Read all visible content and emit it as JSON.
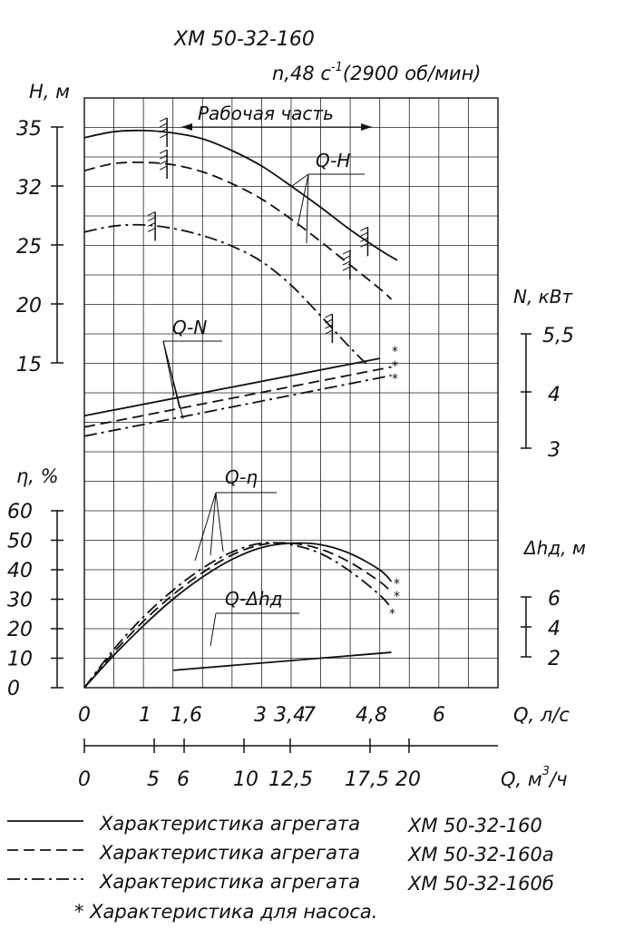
{
  "title": "ХМ 50-32-160",
  "speed_label": "n,48 с",
  "speed_exp": "-1",
  "speed_rpm": "(2900 об/мин)",
  "chart_data": {
    "type": "line",
    "title": "ХМ 50-32-160",
    "work_zone_label": "Рабочая часть",
    "curve_labels": {
      "qh": "Q-H",
      "qn": "Q-N",
      "qeta": "Q-η",
      "qdh": "Q-Δhд"
    },
    "axes": {
      "H": {
        "label": "Н, м",
        "ticks": [
          "35",
          "32",
          "25",
          "20",
          "15"
        ]
      },
      "N": {
        "label": "N, кВт",
        "ticks": [
          "5,5",
          "4",
          "3"
        ]
      },
      "eta": {
        "label": "η, %",
        "ticks": [
          "60",
          "50",
          "40",
          "30",
          "20",
          "10",
          "0"
        ]
      },
      "dh": {
        "label": "Δhд, м",
        "ticks": [
          "6",
          "4",
          "2"
        ]
      },
      "Q_ls": {
        "label": "Q, л/с",
        "ticks": [
          "0",
          "1",
          "1,6",
          "3",
          "3,4",
          "7",
          "4,8",
          "6"
        ]
      },
      "Q_m3h": {
        "label": "Q, м",
        "label_exp": "3",
        "label_unit": "/ч",
        "ticks": [
          "0",
          "5",
          "6",
          "10",
          "12,5",
          "17,5",
          "20"
        ]
      }
    },
    "x_range_ls": [
      0,
      7
    ],
    "series": [
      {
        "name": "ХМ 50-32-160",
        "dash": "solid",
        "qh": [
          [
            0,
            34.1
          ],
          [
            0.5,
            34.6
          ],
          [
            1.0,
            34.7
          ],
          [
            1.5,
            34.5
          ],
          [
            2.0,
            34.0
          ],
          [
            2.5,
            33.0
          ],
          [
            3.0,
            31.7
          ],
          [
            3.5,
            30.0
          ],
          [
            4.0,
            28.2
          ],
          [
            4.5,
            26.3
          ],
          [
            5.0,
            24.6
          ],
          [
            5.3,
            23.7
          ]
        ],
        "qn": [
          [
            0,
            3.58
          ],
          [
            5.0,
            4.59
          ]
        ],
        "qeta": [
          [
            0,
            0
          ],
          [
            0.5,
            11
          ],
          [
            1.0,
            21
          ],
          [
            1.5,
            30
          ],
          [
            2.0,
            37.5
          ],
          [
            2.5,
            43.5
          ],
          [
            3.0,
            47.5
          ],
          [
            3.5,
            49
          ],
          [
            4.0,
            48.5
          ],
          [
            4.5,
            45.5
          ],
          [
            5.0,
            40
          ],
          [
            5.2,
            36
          ]
        ]
      },
      {
        "name": "ХМ 50-32-160а",
        "dash": "dashed",
        "qh": [
          [
            0,
            31.3
          ],
          [
            0.5,
            31.9
          ],
          [
            1.0,
            32.0
          ],
          [
            1.5,
            31.8
          ],
          [
            2.0,
            31.2
          ],
          [
            2.5,
            30.2
          ],
          [
            3.0,
            28.9
          ],
          [
            3.5,
            27.2
          ],
          [
            4.0,
            25.3
          ],
          [
            4.5,
            23.3
          ],
          [
            5.0,
            21.3
          ],
          [
            5.2,
            20.4
          ]
        ],
        "qn": [
          [
            0,
            3.38
          ],
          [
            5.2,
            4.44
          ]
        ],
        "qeta": [
          [
            0,
            0
          ],
          [
            0.5,
            12
          ],
          [
            1.0,
            22.5
          ],
          [
            1.5,
            31.5
          ],
          [
            2.0,
            39
          ],
          [
            2.5,
            45
          ],
          [
            3.0,
            48.5
          ],
          [
            3.5,
            49
          ],
          [
            4.0,
            47
          ],
          [
            4.5,
            42.5
          ],
          [
            5.0,
            36
          ],
          [
            5.2,
            32.5
          ]
        ]
      },
      {
        "name": "ХМ 50-32-160б",
        "dash": "dashdot",
        "qh": [
          [
            0,
            26.1
          ],
          [
            0.5,
            26.6
          ],
          [
            1.0,
            26.7
          ],
          [
            1.5,
            26.4
          ],
          [
            2.0,
            25.8
          ],
          [
            2.5,
            24.9
          ],
          [
            3.0,
            23.6
          ],
          [
            3.5,
            21.6
          ],
          [
            4.0,
            19.0
          ],
          [
            4.5,
            16.3
          ],
          [
            4.8,
            14.8
          ]
        ],
        "qn": [
          [
            0,
            3.22
          ],
          [
            5.2,
            4.29
          ]
        ],
        "qeta": [
          [
            0,
            0
          ],
          [
            0.5,
            13
          ],
          [
            1.0,
            24
          ],
          [
            1.5,
            33
          ],
          [
            2.0,
            40.5
          ],
          [
            2.5,
            46
          ],
          [
            3.0,
            49
          ],
          [
            3.5,
            48.5
          ],
          [
            4.0,
            45.5
          ],
          [
            4.5,
            39.5
          ],
          [
            5.0,
            31.5
          ],
          [
            5.2,
            27
          ]
        ]
      }
    ],
    "qdh": [
      [
        1.5,
        1.1
      ],
      [
        5.2,
        2.3
      ]
    ],
    "work_zone_ticks_ls": [
      [
        1.4,
        4.8
      ],
      [
        1.4,
        4.5
      ],
      [
        1.2,
        4.2
      ]
    ]
  },
  "legend": {
    "items": [
      {
        "text": "Характеристика агрегата",
        "model": "ХМ 50-32-160",
        "dash": "solid"
      },
      {
        "text": "Характеристика агрегата",
        "model": "ХМ 50-32-160а",
        "dash": "dashed"
      },
      {
        "text": "Характеристика агрегата",
        "model": "ХМ 50-32-160б",
        "dash": "dashdot"
      }
    ],
    "pump_note": "* Характеристика для насоса."
  }
}
